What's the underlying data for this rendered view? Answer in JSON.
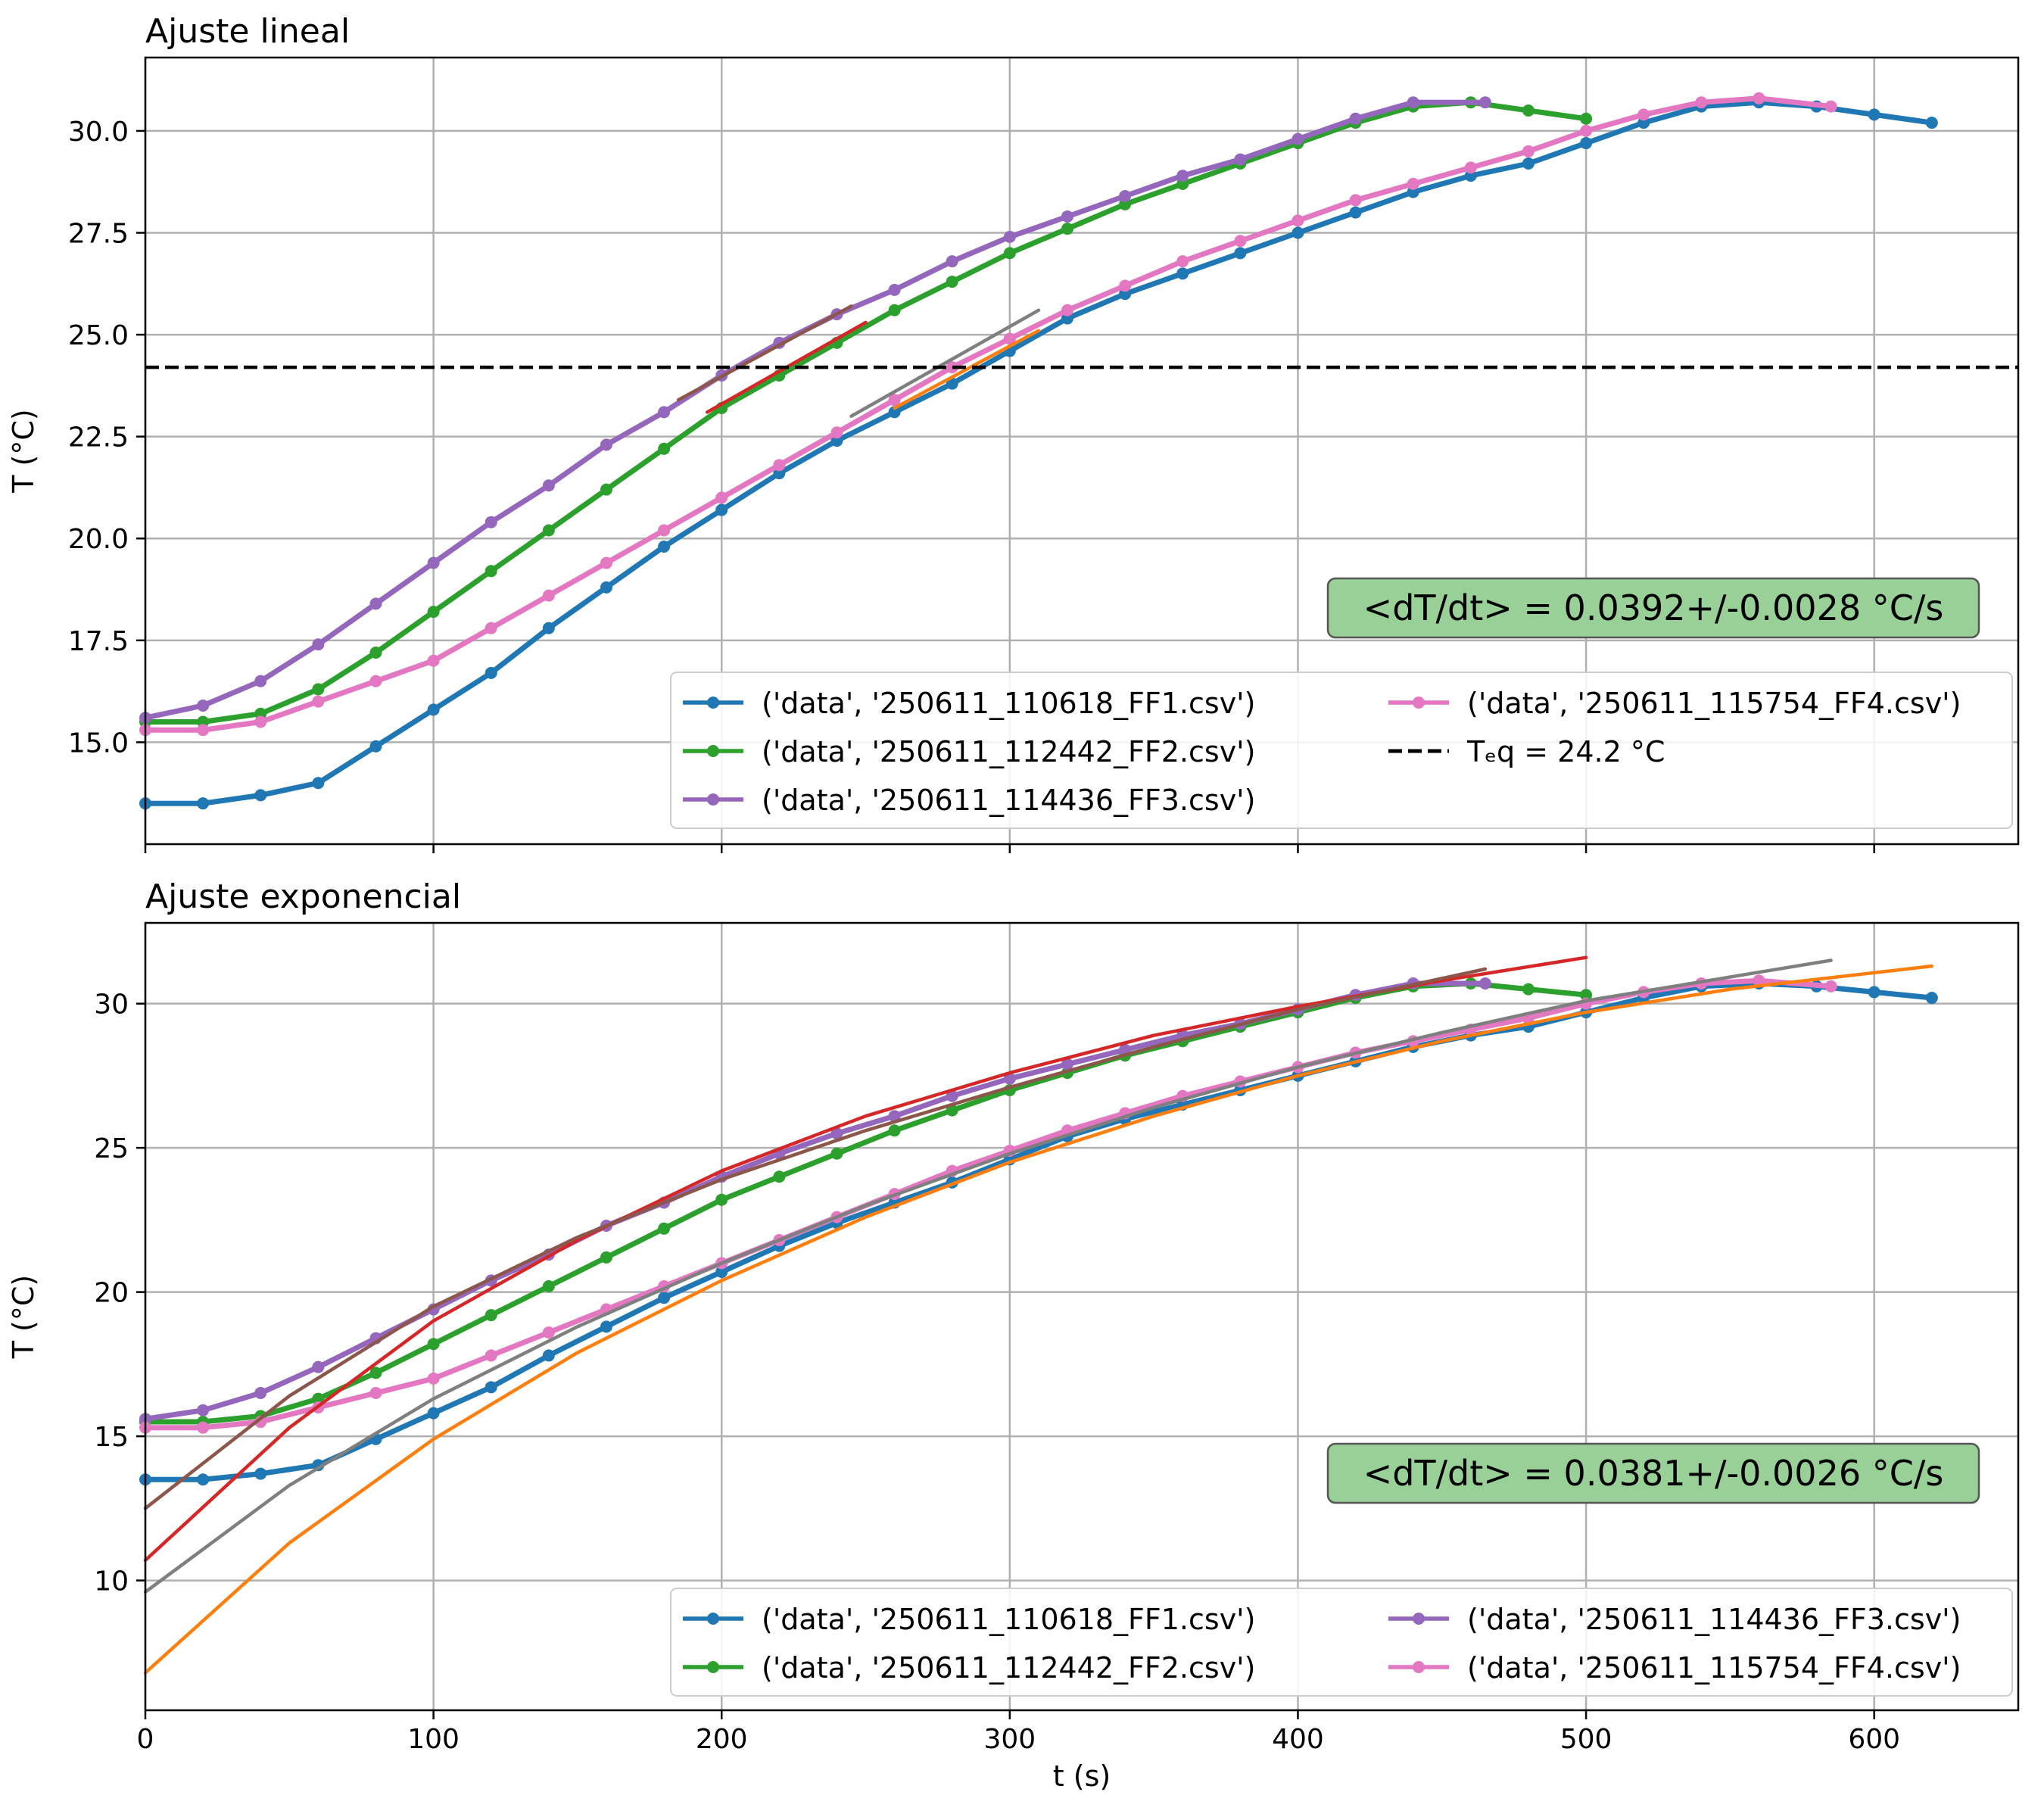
{
  "chart_data": [
    {
      "type": "line",
      "title": "Ajuste lineal",
      "xlabel": "",
      "ylabel": "T (°C)",
      "xlim": [
        0,
        650
      ],
      "ylim": [
        12.5,
        31.8
      ],
      "xticks": [
        "0",
        "100",
        "200",
        "300",
        "400",
        "500",
        "600"
      ],
      "yticks": [
        "15.0",
        "17.5",
        "20.0",
        "22.5",
        "25.0",
        "27.5",
        "30.0"
      ],
      "grid": true,
      "legend_position": "lower-right",
      "legend_cols": 2,
      "annotation": "<dT/dt> = 0.0392+/-0.0028 °C/s",
      "hline": {
        "y": 24.2,
        "label": "Tₑq = 24.2 °C",
        "style": "dashed",
        "color": "#000000"
      },
      "series": [
        {
          "name": "('data', '250611_110618_FF1.csv')",
          "color": "#1f77b4",
          "marker": true,
          "x": [
            0,
            20,
            40,
            60,
            80,
            100,
            120,
            140,
            160,
            180,
            200,
            220,
            240,
            260,
            280,
            300,
            320,
            340,
            360,
            380,
            400,
            420,
            440,
            460,
            480,
            500,
            520,
            540,
            560,
            580,
            600,
            620
          ],
          "y": [
            13.5,
            13.5,
            13.7,
            14.0,
            14.9,
            15.8,
            16.7,
            17.8,
            18.8,
            19.8,
            20.7,
            21.6,
            22.4,
            23.1,
            23.8,
            24.6,
            25.4,
            26.0,
            26.5,
            27.0,
            27.5,
            28.0,
            28.5,
            28.9,
            29.2,
            29.7,
            30.2,
            30.6,
            30.7,
            30.6,
            30.4,
            30.2
          ]
        },
        {
          "name": "('data', '250611_112442_FF2.csv')",
          "color": "#2ca02c",
          "marker": true,
          "x": [
            0,
            20,
            40,
            60,
            80,
            100,
            120,
            140,
            160,
            180,
            200,
            220,
            240,
            260,
            280,
            300,
            320,
            340,
            360,
            380,
            400,
            420,
            440,
            460,
            480,
            500
          ],
          "y": [
            15.5,
            15.5,
            15.7,
            16.3,
            17.2,
            18.2,
            19.2,
            20.2,
            21.2,
            22.2,
            23.2,
            24.0,
            24.8,
            25.6,
            26.3,
            27.0,
            27.6,
            28.2,
            28.7,
            29.2,
            29.7,
            30.2,
            30.6,
            30.7,
            30.5,
            30.3
          ]
        },
        {
          "name": "('data', '250611_114436_FF3.csv')",
          "color": "#9467bd",
          "marker": true,
          "x": [
            0,
            20,
            40,
            60,
            80,
            100,
            120,
            140,
            160,
            180,
            200,
            220,
            240,
            260,
            280,
            300,
            320,
            340,
            360,
            380,
            400,
            420,
            440,
            465
          ],
          "y": [
            15.6,
            15.9,
            16.5,
            17.4,
            18.4,
            19.4,
            20.4,
            21.3,
            22.3,
            23.1,
            24.0,
            24.8,
            25.5,
            26.1,
            26.8,
            27.4,
            27.9,
            28.4,
            28.9,
            29.3,
            29.8,
            30.3,
            30.7,
            30.7
          ]
        },
        {
          "name": "('data', '250611_115754_FF4.csv')",
          "color": "#e377c2",
          "marker": true,
          "x": [
            0,
            20,
            40,
            60,
            80,
            100,
            120,
            140,
            160,
            180,
            200,
            220,
            240,
            260,
            280,
            300,
            320,
            340,
            360,
            380,
            400,
            420,
            440,
            460,
            480,
            500,
            520,
            540,
            560,
            585
          ],
          "y": [
            15.3,
            15.3,
            15.5,
            16.0,
            16.5,
            17.0,
            17.8,
            18.6,
            19.4,
            20.2,
            21.0,
            21.8,
            22.6,
            23.4,
            24.2,
            24.9,
            25.6,
            26.2,
            26.8,
            27.3,
            27.8,
            28.3,
            28.7,
            29.1,
            29.5,
            30.0,
            30.4,
            30.7,
            30.8,
            30.6
          ]
        },
        {
          "name": "",
          "color": "#d62728",
          "marker": false,
          "x": [
            195,
            250
          ],
          "y": [
            23.1,
            25.3
          ]
        },
        {
          "name": "",
          "color": "#8c564b",
          "marker": false,
          "x": [
            185,
            245
          ],
          "y": [
            23.4,
            25.7
          ]
        },
        {
          "name": "",
          "color": "#ff7f0e",
          "marker": false,
          "x": [
            260,
            310
          ],
          "y": [
            23.2,
            25.1
          ]
        },
        {
          "name": "",
          "color": "#7f7f7f",
          "marker": false,
          "x": [
            245,
            310
          ],
          "y": [
            23.0,
            25.6
          ]
        }
      ]
    },
    {
      "type": "line",
      "title": "Ajuste exponencial",
      "xlabel": "t (s)",
      "ylabel": "T (°C)",
      "xlim": [
        0,
        650
      ],
      "ylim": [
        5.5,
        32.8
      ],
      "xticks": [
        "0",
        "100",
        "200",
        "300",
        "400",
        "500",
        "600"
      ],
      "yticks": [
        "10",
        "15",
        "20",
        "25",
        "30"
      ],
      "grid": true,
      "legend_position": "lower-right",
      "legend_cols": 2,
      "annotation": "<dT/dt> = 0.0381+/-0.0026 °C/s",
      "series": [
        {
          "name": "('data', '250611_110618_FF1.csv')",
          "color": "#1f77b4",
          "marker": true,
          "x": [
            0,
            20,
            40,
            60,
            80,
            100,
            120,
            140,
            160,
            180,
            200,
            220,
            240,
            260,
            280,
            300,
            320,
            340,
            360,
            380,
            400,
            420,
            440,
            460,
            480,
            500,
            520,
            540,
            560,
            580,
            600,
            620
          ],
          "y": [
            13.5,
            13.5,
            13.7,
            14.0,
            14.9,
            15.8,
            16.7,
            17.8,
            18.8,
            19.8,
            20.7,
            21.6,
            22.4,
            23.1,
            23.8,
            24.6,
            25.4,
            26.0,
            26.5,
            27.0,
            27.5,
            28.0,
            28.5,
            28.9,
            29.2,
            29.7,
            30.2,
            30.6,
            30.7,
            30.6,
            30.4,
            30.2
          ]
        },
        {
          "name": "('data', '250611_112442_FF2.csv')",
          "color": "#2ca02c",
          "marker": true,
          "x": [
            0,
            20,
            40,
            60,
            80,
            100,
            120,
            140,
            160,
            180,
            200,
            220,
            240,
            260,
            280,
            300,
            320,
            340,
            360,
            380,
            400,
            420,
            440,
            460,
            480,
            500
          ],
          "y": [
            15.5,
            15.5,
            15.7,
            16.3,
            17.2,
            18.2,
            19.2,
            20.2,
            21.2,
            22.2,
            23.2,
            24.0,
            24.8,
            25.6,
            26.3,
            27.0,
            27.6,
            28.2,
            28.7,
            29.2,
            29.7,
            30.2,
            30.6,
            30.7,
            30.5,
            30.3
          ]
        },
        {
          "name": "('data', '250611_114436_FF3.csv')",
          "color": "#9467bd",
          "marker": true,
          "x": [
            0,
            20,
            40,
            60,
            80,
            100,
            120,
            140,
            160,
            180,
            200,
            220,
            240,
            260,
            280,
            300,
            320,
            340,
            360,
            380,
            400,
            420,
            440,
            465
          ],
          "y": [
            15.6,
            15.9,
            16.5,
            17.4,
            18.4,
            19.4,
            20.4,
            21.3,
            22.3,
            23.1,
            24.0,
            24.8,
            25.5,
            26.1,
            26.8,
            27.4,
            27.9,
            28.4,
            28.9,
            29.3,
            29.8,
            30.3,
            30.7,
            30.7
          ]
        },
        {
          "name": "('data', '250611_115754_FF4.csv')",
          "color": "#e377c2",
          "marker": true,
          "x": [
            0,
            20,
            40,
            60,
            80,
            100,
            120,
            140,
            160,
            180,
            200,
            220,
            240,
            260,
            280,
            300,
            320,
            340,
            360,
            380,
            400,
            420,
            440,
            460,
            480,
            500,
            520,
            540,
            560,
            585
          ],
          "y": [
            15.3,
            15.3,
            15.5,
            16.0,
            16.5,
            17.0,
            17.8,
            18.6,
            19.4,
            20.2,
            21.0,
            21.8,
            22.6,
            23.4,
            24.2,
            24.9,
            25.6,
            26.2,
            26.8,
            27.3,
            27.8,
            28.3,
            28.7,
            29.1,
            29.5,
            30.0,
            30.4,
            30.7,
            30.8,
            30.6
          ]
        },
        {
          "name": "",
          "color": "#d62728",
          "marker": false,
          "x": [
            0,
            50,
            100,
            150,
            200,
            250,
            300,
            350,
            400,
            450,
            500
          ],
          "y": [
            10.7,
            15.3,
            19.0,
            21.8,
            24.2,
            26.1,
            27.6,
            28.9,
            29.9,
            30.8,
            31.6
          ]
        },
        {
          "name": "",
          "color": "#8c564b",
          "marker": false,
          "x": [
            0,
            50,
            100,
            150,
            200,
            250,
            300,
            350,
            400,
            465
          ],
          "y": [
            12.5,
            16.4,
            19.5,
            21.9,
            23.9,
            25.6,
            27.1,
            28.5,
            29.8,
            31.2
          ]
        },
        {
          "name": "",
          "color": "#ff7f0e",
          "marker": false,
          "x": [
            0,
            50,
            100,
            150,
            200,
            250,
            300,
            350,
            400,
            450,
            500,
            550,
            620
          ],
          "y": [
            6.8,
            11.3,
            14.9,
            17.9,
            20.4,
            22.6,
            24.5,
            26.1,
            27.5,
            28.7,
            29.7,
            30.5,
            31.3
          ]
        },
        {
          "name": "",
          "color": "#7f7f7f",
          "marker": false,
          "x": [
            0,
            50,
            100,
            150,
            200,
            250,
            300,
            350,
            400,
            450,
            500,
            585
          ],
          "y": [
            9.6,
            13.3,
            16.3,
            18.8,
            21.0,
            23.0,
            24.8,
            26.4,
            27.8,
            29.0,
            30.1,
            31.5
          ]
        }
      ]
    }
  ]
}
